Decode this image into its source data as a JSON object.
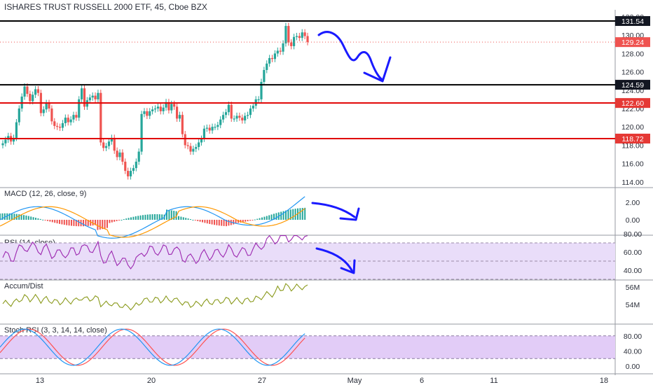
{
  "header": {
    "title": "ISHARES TRUST RUSSELL 2000 ETF, 45, Cboe BZX"
  },
  "colors": {
    "up": "#26a69a",
    "down": "#ef5350",
    "black_line": "#000000",
    "red_line": "#e00000",
    "annotation": "#1a1aff",
    "macd": "#2196f3",
    "signal": "#ff9800",
    "rsi": "#9c27b0",
    "accum": "#8a9a1c",
    "stoch_k": "#2196f3",
    "stoch_d": "#ff5252"
  },
  "chart_data": {
    "type": "candlestick",
    "x_labels": [
      "13",
      "20",
      "27",
      "May",
      "6",
      "11",
      "18"
    ],
    "price_pane": {
      "y_ticks": [
        "114.00",
        "116.00",
        "118.00",
        "120.00",
        "122.00",
        "124.00",
        "126.00",
        "128.00",
        "130.00",
        "132.00"
      ],
      "last_price": "129.24",
      "levels": [
        {
          "value": "131.54",
          "style": "black"
        },
        {
          "value": "124.59",
          "style": "black"
        },
        {
          "value": "122.60",
          "style": "red"
        },
        {
          "value": "118.72",
          "style": "red"
        }
      ],
      "candle_closes": [
        118.2,
        118.6,
        119.0,
        118.4,
        118.8,
        120.5,
        122.0,
        123.3,
        124.4,
        123.6,
        122.8,
        123.5,
        124.1,
        123.7,
        121.5,
        121.9,
        122.6,
        122.0,
        120.6,
        120.1,
        120.0,
        119.9,
        120.4,
        121.0,
        120.5,
        120.8,
        121.3,
        121.0,
        123.0,
        124.2,
        122.2,
        122.9,
        123.2,
        123.4,
        123.0,
        123.7,
        118.3,
        117.7,
        117.9,
        118.4,
        118.8,
        117.4,
        116.7,
        117.2,
        116.2,
        115.2,
        114.6,
        115.2,
        115.5,
        116.2,
        117.3,
        121.4,
        121.7,
        121.2,
        121.7,
        121.9,
        122.0,
        122.2,
        121.7,
        122.1,
        122.7,
        121.8,
        122.5,
        122.2,
        120.9,
        121.3,
        119.2,
        118.0,
        117.9,
        117.3,
        117.6,
        117.8,
        118.3,
        118.7,
        119.8,
        119.9,
        119.6,
        120.0,
        120.0,
        120.2,
        120.8,
        121.3,
        121.6,
        122.4,
        120.9,
        120.9,
        121.2,
        121.0,
        120.7,
        121.2,
        121.3,
        122.0,
        122.3,
        123.0,
        123.0,
        124.9,
        126.2,
        126.9,
        127.5,
        127.4,
        128.0,
        128.3,
        128.2,
        129.1,
        131.0,
        129.2,
        128.8,
        129.8,
        129.9,
        129.7,
        130.3,
        129.9,
        129.24
      ]
    },
    "macd_pane": {
      "label": "MACD (12, 26, close, 9)",
      "y_ticks": [
        "0.00",
        "2.00"
      ]
    },
    "rsi_pane": {
      "label": "RSI (14, close)",
      "y_ticks": [
        "40.00",
        "60.00",
        "80.00"
      ],
      "band": [
        30,
        70
      ]
    },
    "accum_pane": {
      "label": "Accum/Dist",
      "y_ticks": [
        "54M",
        "56M"
      ]
    },
    "stoch_pane": {
      "label": "Stoch RSI (3, 3, 14, 14, close)",
      "y_ticks": [
        "0.00",
        "40.00",
        "80.00"
      ],
      "band": [
        20,
        80
      ]
    }
  }
}
